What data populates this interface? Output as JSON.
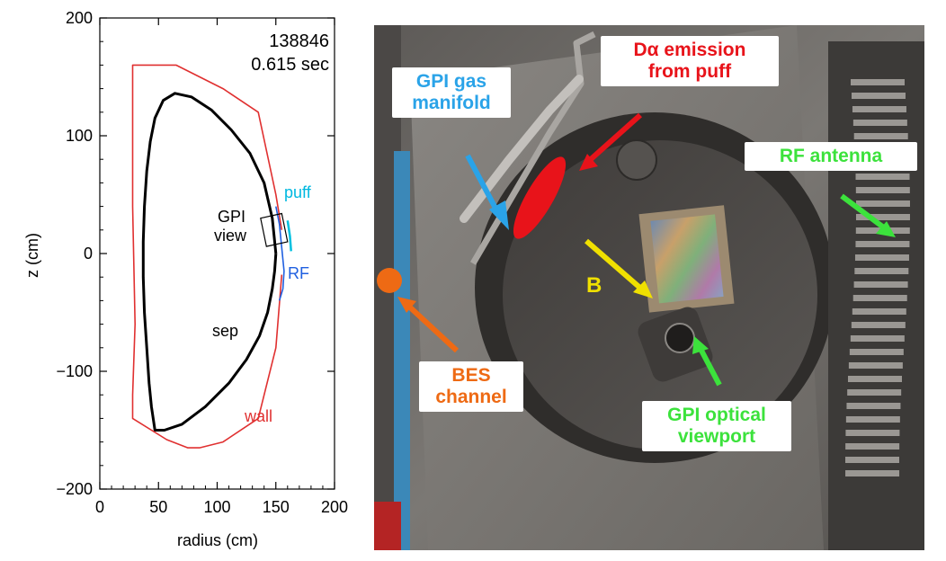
{
  "chart_data": {
    "type": "line",
    "annotation": {
      "shot": "138846",
      "time": "0.615 sec"
    },
    "xlabel": "radius (cm)",
    "ylabel": "z (cm)",
    "xlim": [
      0,
      200
    ],
    "ylim": [
      -200,
      200
    ],
    "xticks": [
      0,
      50,
      100,
      150,
      200
    ],
    "yticks": [
      200,
      100,
      0,
      -100,
      -200
    ],
    "ytick_labels": [
      "200",
      "100",
      "0",
      "−100",
      "−200"
    ],
    "series": [
      {
        "name": "sep",
        "color": "#000000",
        "x": [
          150,
          147,
          140,
          128,
          112,
          95,
          78,
          64,
          54,
          47,
          43,
          40,
          38,
          37,
          37,
          38,
          40,
          42,
          44,
          47,
          55,
          70,
          90,
          110,
          125,
          136,
          143,
          147,
          149,
          150
        ],
        "y": [
          0,
          30,
          60,
          85,
          105,
          122,
          133,
          136,
          130,
          115,
          95,
          70,
          40,
          10,
          -20,
          -50,
          -80,
          -110,
          -130,
          -150,
          -150,
          -145,
          -130,
          -110,
          -90,
          -70,
          -50,
          -30,
          -15,
          0
        ]
      },
      {
        "name": "wall",
        "color": "#e03030",
        "x": [
          155,
          150,
          135,
          105,
          85,
          75,
          57,
          28,
          28,
          30,
          28,
          28,
          45,
          65,
          105,
          135,
          150,
          155
        ],
        "y": [
          -18,
          -80,
          -140,
          -160,
          -165,
          -165,
          -158,
          -140,
          -120,
          -60,
          40,
          160,
          160,
          160,
          140,
          120,
          50,
          20
        ]
      },
      {
        "name": "RF",
        "color": "#2060e0",
        "x": [
          150,
          153,
          155,
          157,
          156,
          153
        ],
        "y": [
          40,
          25,
          5,
          -15,
          -30,
          -40
        ]
      },
      {
        "name": "puff",
        "color": "#00c0e0",
        "x": [
          160,
          162,
          163
        ],
        "y": [
          28,
          15,
          2
        ]
      }
    ],
    "regions": [
      {
        "name": "GPI view",
        "corners": [
          [
            137,
            30
          ],
          [
            155,
            34
          ],
          [
            160,
            10
          ],
          [
            142,
            6
          ]
        ]
      }
    ],
    "labels": [
      "puff",
      "GPI",
      "view",
      "RF",
      "sep",
      "wall"
    ]
  },
  "photo": {
    "callouts": [
      {
        "text": "GPI gas\nmanifold",
        "color": "#2aa3e8"
      },
      {
        "text": "Dα emission\nfrom puff",
        "color": "#e8131a"
      },
      {
        "text": "RF antenna",
        "color": "#3ce23c"
      },
      {
        "text": "BES\nchannel",
        "color": "#ee6a14"
      },
      {
        "text": "GPI optical\nviewport",
        "color": "#3ce23c"
      }
    ],
    "b_label": "B",
    "b_color": "#f0e000",
    "emission_color": "#e8131a",
    "bes_dot_color": "#ee6a14"
  }
}
